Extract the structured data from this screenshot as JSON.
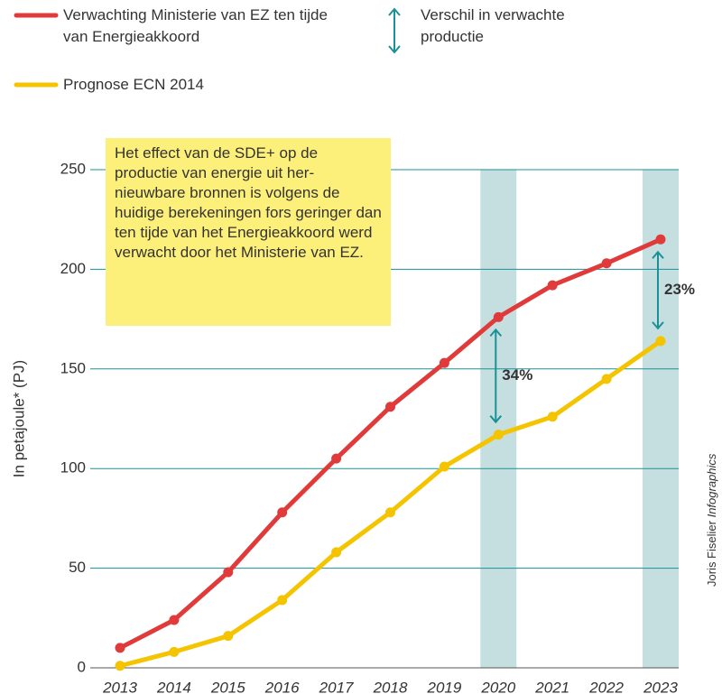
{
  "chart_data": {
    "type": "line",
    "categories": [
      "2013",
      "2014",
      "2015",
      "2016",
      "2017",
      "2018",
      "2019",
      "2020",
      "2021",
      "2022",
      "2023"
    ],
    "series": [
      {
        "name": "Verwachting Ministerie van EZ ten tijde van Energieakkoord",
        "color": "#e03a3a",
        "values": [
          10,
          24,
          48,
          78,
          105,
          131,
          153,
          176,
          192,
          203,
          215
        ]
      },
      {
        "name": "Prognose ECN 2014",
        "color": "#f5c400",
        "values": [
          1,
          8,
          16,
          34,
          58,
          78,
          101,
          117,
          126,
          145,
          164
        ]
      }
    ],
    "difference_legend": "Verschil in verwachte productie",
    "difference_color": "#1a9196",
    "annotations": [
      {
        "x": "2020",
        "label": "34%"
      },
      {
        "x": "2023",
        "label": "23%"
      }
    ],
    "note": "Het effect van de SDE+ op de productie van energie uit her-nieuwbare bronnen is volgens de huidige berekeningen fors geringer dan ten tijde van het Energieakkoord werd verwacht door het Ministerie van EZ.",
    "ylabel": "In petajoule* (PJ)",
    "ylim": [
      0,
      250
    ],
    "yticks": [
      0,
      50,
      100,
      150,
      200,
      250
    ],
    "grid": true,
    "credit": {
      "name": "Joris Fiselier",
      "suffix": "Infographics"
    }
  }
}
